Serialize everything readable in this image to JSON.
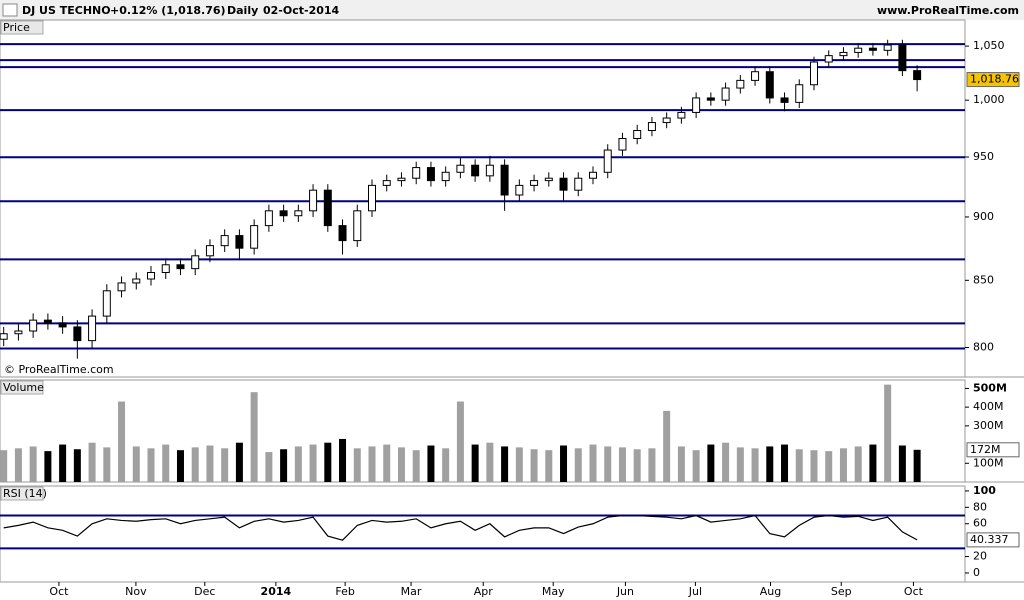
{
  "header": {
    "symbol": "DJ US TECHNO",
    "change": "+0.12% (1,018.76)",
    "period": "Daily",
    "date": "02-Oct-2014",
    "site": "www.ProRealTime.com",
    "copyright": "© ProRealTime.com"
  },
  "chart_data": [
    {
      "type": "candlestick",
      "panel_label": "Price",
      "log_scale": true,
      "x": [
        0,
        4,
        8,
        12,
        16,
        20,
        24,
        28,
        32,
        36,
        40,
        44,
        48,
        52,
        56,
        60,
        64,
        68,
        72,
        76,
        80,
        84,
        88,
        92,
        96,
        100,
        104,
        108,
        112,
        116,
        120,
        124,
        128,
        132,
        136,
        140,
        144,
        148,
        152,
        156,
        160,
        164,
        168,
        172,
        176,
        180,
        184,
        188,
        192,
        196,
        200,
        204,
        208,
        212,
        216,
        220,
        224,
        228,
        232,
        236,
        240,
        244,
        248
      ],
      "open": [
        806,
        810,
        812,
        820,
        818,
        815,
        805,
        823,
        842,
        848,
        851,
        856,
        862,
        859,
        869,
        877,
        885,
        875,
        893,
        905,
        901,
        905,
        922,
        893,
        881,
        905,
        926,
        930,
        932,
        941,
        930,
        937,
        943,
        934,
        943,
        918,
        926,
        930,
        932,
        922,
        932,
        937,
        956,
        966,
        973,
        980,
        984,
        989,
        1002,
        1000,
        1011,
        1018,
        1026,
        1002,
        998,
        1014,
        1035,
        1041,
        1044,
        1048,
        1046,
        1051,
        1027
      ],
      "high": [
        815,
        817,
        825,
        825,
        823,
        820,
        828,
        847,
        853,
        856,
        861,
        867,
        867,
        874,
        882,
        890,
        890,
        898,
        910,
        910,
        910,
        927,
        927,
        898,
        910,
        931,
        935,
        937,
        946,
        946,
        942,
        950,
        948,
        951,
        948,
        931,
        935,
        937,
        937,
        937,
        942,
        961,
        971,
        978,
        985,
        989,
        994,
        1007,
        1007,
        1016,
        1023,
        1031,
        1031,
        1007,
        1019,
        1040,
        1046,
        1049,
        1053,
        1053,
        1056,
        1056,
        1032
      ],
      "low": [
        801,
        805,
        807,
        813,
        810,
        792,
        800,
        818,
        837,
        843,
        846,
        851,
        854,
        854,
        864,
        872,
        866,
        870,
        888,
        896,
        896,
        900,
        888,
        870,
        876,
        900,
        921,
        925,
        927,
        925,
        925,
        932,
        929,
        929,
        905,
        913,
        921,
        925,
        912,
        917,
        927,
        932,
        951,
        961,
        968,
        975,
        979,
        984,
        995,
        995,
        1006,
        1013,
        997,
        990,
        993,
        1009,
        1030,
        1036,
        1039,
        1041,
        1041,
        1022,
        1008
      ],
      "close": [
        810,
        812,
        820,
        818,
        815,
        805,
        823,
        842,
        848,
        851,
        856,
        862,
        859,
        869,
        877,
        885,
        875,
        893,
        905,
        901,
        905,
        922,
        893,
        881,
        905,
        926,
        930,
        932,
        941,
        930,
        937,
        943,
        934,
        943,
        918,
        926,
        930,
        932,
        922,
        932,
        937,
        956,
        966,
        973,
        980,
        984,
        989,
        1002,
        1000,
        1011,
        1018,
        1026,
        1002,
        998,
        1014,
        1035,
        1041,
        1044,
        1048,
        1046,
        1051,
        1027,
        1018.76
      ],
      "last_value_label": "1,018.76",
      "up_color": "#ffffff",
      "down_color": "#000000",
      "levels": [
        1051.9,
        1036.8,
        1030.3,
        991,
        949.8,
        912.8,
        866.2,
        817.6,
        799.3
      ],
      "level_color": "#000080",
      "xlim": [
        -1,
        261
      ],
      "ylim": [
        779,
        1075
      ],
      "yticks": [
        800,
        850,
        900,
        950,
        {
          "value": 1000,
          "label": "1,000"
        },
        {
          "value": 1050,
          "label": "1,050"
        }
      ]
    },
    {
      "type": "bar",
      "panel_label": "Volume",
      "x": [
        0,
        4,
        8,
        12,
        16,
        20,
        24,
        28,
        32,
        36,
        40,
        44,
        48,
        52,
        56,
        60,
        64,
        68,
        72,
        76,
        80,
        84,
        88,
        92,
        96,
        100,
        104,
        108,
        112,
        116,
        120,
        124,
        128,
        132,
        136,
        140,
        144,
        148,
        152,
        156,
        160,
        164,
        168,
        172,
        176,
        180,
        184,
        188,
        192,
        196,
        200,
        204,
        208,
        212,
        216,
        220,
        224,
        228,
        232,
        236,
        240,
        244,
        248
      ],
      "values": [
        170,
        180,
        190,
        165,
        200,
        175,
        210,
        185,
        430,
        190,
        180,
        200,
        170,
        185,
        195,
        180,
        210,
        480,
        160,
        175,
        190,
        200,
        210,
        230,
        180,
        190,
        200,
        185,
        170,
        195,
        180,
        430,
        200,
        210,
        190,
        185,
        175,
        170,
        195,
        180,
        200,
        190,
        185,
        175,
        180,
        380,
        190,
        170,
        200,
        210,
        185,
        180,
        190,
        200,
        175,
        170,
        165,
        180,
        190,
        200,
        520,
        195,
        172
      ],
      "last_value_label": "172M",
      "up_color": "#a0a0a0",
      "down_color": "#000000",
      "xlim": [
        -1,
        261
      ],
      "ylim": [
        0,
        545
      ],
      "yticks": [
        {
          "value": 100,
          "label": "100M"
        },
        {
          "value": 300,
          "label": "300M"
        },
        {
          "value": 400,
          "label": "400M"
        },
        {
          "value": 500,
          "label": "500M"
        }
      ]
    },
    {
      "type": "line",
      "panel_label": "RSI (14)",
      "color": "#000000",
      "x": [
        0,
        4,
        8,
        12,
        16,
        20,
        24,
        28,
        32,
        36,
        40,
        44,
        48,
        52,
        56,
        60,
        64,
        68,
        72,
        76,
        80,
        84,
        88,
        92,
        96,
        100,
        104,
        108,
        112,
        116,
        120,
        124,
        128,
        132,
        136,
        140,
        144,
        148,
        152,
        156,
        160,
        164,
        168,
        172,
        176,
        180,
        184,
        188,
        192,
        196,
        200,
        204,
        208,
        212,
        216,
        220,
        224,
        228,
        232,
        236,
        240,
        244,
        248
      ],
      "values": [
        55,
        58,
        62,
        55,
        52,
        45,
        60,
        66,
        64,
        63,
        65,
        66,
        60,
        64,
        66,
        68,
        55,
        63,
        66,
        62,
        64,
        68,
        45,
        40,
        58,
        64,
        62,
        63,
        66,
        55,
        60,
        63,
        52,
        60,
        44,
        52,
        55,
        55,
        48,
        56,
        60,
        68,
        70,
        70,
        69,
        68,
        66,
        70,
        62,
        64,
        66,
        70,
        48,
        44,
        58,
        68,
        70,
        68,
        69,
        64,
        68,
        50,
        40.337
      ],
      "levels": [
        70,
        30
      ],
      "level_color": "#000080",
      "xlim": [
        -1,
        261
      ],
      "ylim": [
        -11,
        106
      ],
      "yticks": [
        0,
        20,
        60,
        80,
        100
      ],
      "xticks": [
        {
          "value": 15,
          "label": "Oct"
        },
        {
          "value": 35.9,
          "label": "Nov"
        },
        {
          "value": 54.6,
          "label": "Dec"
        },
        {
          "value": 73.9,
          "label": "2014"
        },
        {
          "value": 92.7,
          "label": "Feb"
        },
        {
          "value": 110.6,
          "label": "Mar"
        },
        {
          "value": 130.2,
          "label": "Apr"
        },
        {
          "value": 149.2,
          "label": "May"
        },
        {
          "value": 168.8,
          "label": "Jun"
        },
        {
          "value": 187.8,
          "label": "Jul"
        },
        {
          "value": 208.2,
          "label": "Aug"
        },
        {
          "value": 227.4,
          "label": "Sep"
        },
        {
          "value": 247,
          "label": "Oct"
        }
      ]
    }
  ]
}
